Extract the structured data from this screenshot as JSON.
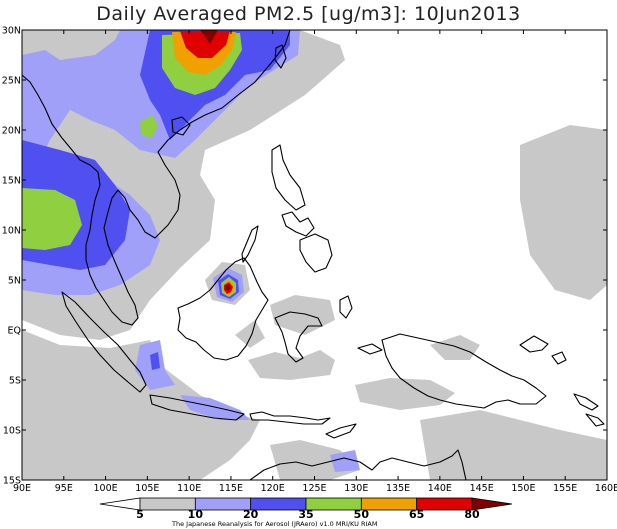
{
  "title": "Daily Averaged PM2.5 [ug/m3]: 10Jun2013",
  "map": {
    "lon_range": [
      90,
      160
    ],
    "lat_range": [
      -15,
      30
    ],
    "lon_ticks": [
      "90E",
      "95E",
      "100E",
      "105E",
      "110E",
      "115E",
      "120E",
      "125E",
      "130E",
      "135E",
      "140E",
      "145E",
      "150E",
      "155E",
      "160E"
    ],
    "lat_ticks": [
      "30N",
      "25N",
      "20N",
      "15N",
      "10N",
      "5N",
      "EQ",
      "5S",
      "10S",
      "15S"
    ],
    "coastline_color": "#000000",
    "background_color": "#ffffff"
  },
  "colorbar": {
    "levels": [
      "0",
      "5",
      "10",
      "20",
      "35",
      "50",
      "65",
      "80"
    ],
    "colors": [
      "#ffffff",
      "#c8c8c8",
      "#a0a0f8",
      "#5050f0",
      "#90d040",
      "#f0a000",
      "#e00000",
      "#800000"
    ],
    "credit": "The Japanese Reanalysis for Aerosol (JRAero) v1.0 MRI/KU RIAM"
  }
}
